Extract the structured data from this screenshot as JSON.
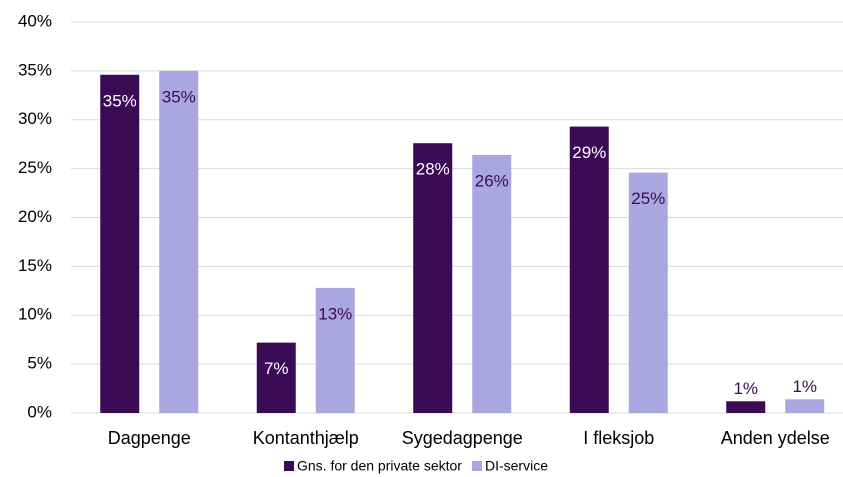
{
  "chart_data": {
    "type": "bar",
    "categories": [
      "Dagpenge",
      "Kontanthjælp",
      "Sygedagpenge",
      "I fleksjob",
      "Anden ydelse"
    ],
    "series": [
      {
        "name": "Gns. for den private sektor",
        "color": "#3b0a55",
        "values": [
          34.6,
          7.2,
          27.6,
          29.3,
          1.2
        ],
        "value_labels": [
          "35%",
          "7%",
          "28%",
          "29%",
          "1%"
        ]
      },
      {
        "name": "DI-service",
        "color": "#aaa7e0",
        "values": [
          35.0,
          12.8,
          26.4,
          24.6,
          1.4
        ],
        "value_labels": [
          "35%",
          "13%",
          "26%",
          "25%",
          "1%"
        ]
      }
    ],
    "ylim": [
      0,
      40
    ],
    "yticks": [
      {
        "value": 0,
        "label": "0%"
      },
      {
        "value": 5,
        "label": "5%"
      },
      {
        "value": 10,
        "label": "10%"
      },
      {
        "value": 15,
        "label": "15%"
      },
      {
        "value": 20,
        "label": "20%"
      },
      {
        "value": 25,
        "label": "25%"
      },
      {
        "value": 30,
        "label": "30%"
      },
      {
        "value": 35,
        "label": "35%"
      },
      {
        "value": 40,
        "label": "40%"
      }
    ],
    "grid": true,
    "legend": "bottom"
  }
}
